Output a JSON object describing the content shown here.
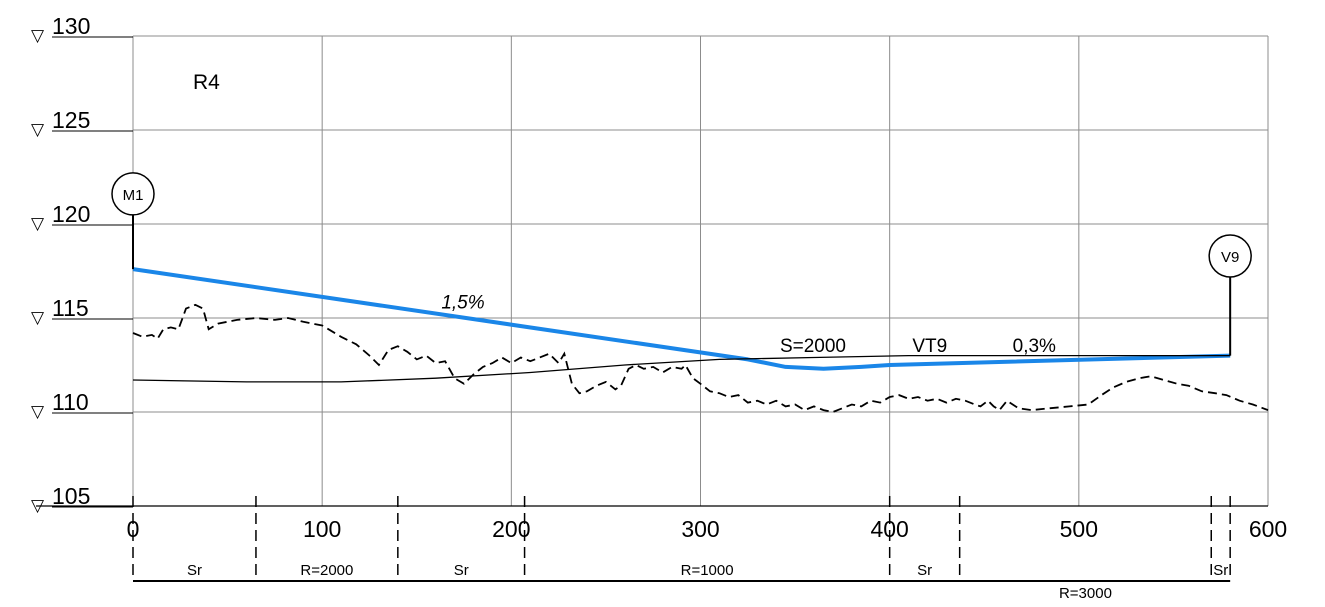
{
  "chart_data": {
    "type": "line",
    "title": "",
    "xlabel": "",
    "ylabel": "",
    "xlim": [
      0,
      600
    ],
    "ylim": [
      105,
      130
    ],
    "grid": true,
    "x_ticks": [
      {
        "value": 0,
        "label": "0"
      },
      {
        "value": 100,
        "label": "100"
      },
      {
        "value": 200,
        "label": "200"
      },
      {
        "value": 300,
        "label": "300"
      },
      {
        "value": 400,
        "label": "400"
      },
      {
        "value": 500,
        "label": "500"
      },
      {
        "value": 600,
        "label": "600"
      }
    ],
    "y_ticks": [
      {
        "value": 130,
        "label": "130"
      },
      {
        "value": 125,
        "label": "125"
      },
      {
        "value": 120,
        "label": "120"
      },
      {
        "value": 115,
        "label": "115"
      },
      {
        "value": 110,
        "label": "110"
      },
      {
        "value": 105,
        "label": "105"
      }
    ],
    "y_tick_marker": "▽",
    "route_label": "R4",
    "series": [
      {
        "role": "design-grade",
        "color": "#1a86e8",
        "points": [
          [
            0,
            117.6
          ],
          [
            325,
            112.8
          ],
          [
            345,
            112.4
          ],
          [
            365,
            112.3
          ],
          [
            385,
            112.4
          ],
          [
            400,
            112.5
          ],
          [
            580,
            113.0
          ]
        ]
      },
      {
        "role": "ground-profile",
        "style": "dashed",
        "color": "#000000",
        "points": [
          [
            0,
            114.2
          ],
          [
            5,
            114.0
          ],
          [
            10,
            114.1
          ],
          [
            13,
            113.9
          ],
          [
            16,
            114.4
          ],
          [
            20,
            114.5
          ],
          [
            24,
            114.4
          ],
          [
            28,
            115.5
          ],
          [
            33,
            115.7
          ],
          [
            37,
            115.5
          ],
          [
            40,
            114.4
          ],
          [
            45,
            114.7
          ],
          [
            55,
            114.9
          ],
          [
            65,
            115.0
          ],
          [
            75,
            114.9
          ],
          [
            82,
            115.0
          ],
          [
            90,
            114.8
          ],
          [
            100,
            114.6
          ],
          [
            110,
            114.0
          ],
          [
            118,
            113.6
          ],
          [
            125,
            113.0
          ],
          [
            130,
            112.5
          ],
          [
            135,
            113.3
          ],
          [
            140,
            113.5
          ],
          [
            145,
            113.2
          ],
          [
            150,
            112.8
          ],
          [
            155,
            113.0
          ],
          [
            160,
            112.6
          ],
          [
            165,
            112.7
          ],
          [
            170,
            111.8
          ],
          [
            175,
            111.5
          ],
          [
            180,
            112.0
          ],
          [
            185,
            112.4
          ],
          [
            190,
            112.6
          ],
          [
            195,
            112.9
          ],
          [
            200,
            112.6
          ],
          [
            205,
            112.9
          ],
          [
            210,
            112.7
          ],
          [
            215,
            112.9
          ],
          [
            220,
            113.1
          ],
          [
            225,
            112.6
          ],
          [
            228,
            113.1
          ],
          [
            232,
            111.5
          ],
          [
            236,
            111.0
          ],
          [
            240,
            111.1
          ],
          [
            245,
            111.4
          ],
          [
            250,
            111.6
          ],
          [
            255,
            111.2
          ],
          [
            258,
            111.4
          ],
          [
            262,
            112.3
          ],
          [
            266,
            112.5
          ],
          [
            270,
            112.3
          ],
          [
            275,
            112.4
          ],
          [
            280,
            112.1
          ],
          [
            285,
            112.4
          ],
          [
            290,
            112.3
          ],
          [
            292,
            112.5
          ],
          [
            296,
            111.8
          ],
          [
            300,
            111.5
          ],
          [
            305,
            111.1
          ],
          [
            310,
            111.0
          ],
          [
            315,
            110.8
          ],
          [
            320,
            110.9
          ],
          [
            325,
            110.5
          ],
          [
            330,
            110.6
          ],
          [
            335,
            110.4
          ],
          [
            340,
            110.6
          ],
          [
            345,
            110.3
          ],
          [
            350,
            110.4
          ],
          [
            355,
            110.1
          ],
          [
            360,
            110.3
          ],
          [
            365,
            110.1
          ],
          [
            370,
            110.0
          ],
          [
            375,
            110.2
          ],
          [
            380,
            110.4
          ],
          [
            385,
            110.3
          ],
          [
            390,
            110.6
          ],
          [
            395,
            110.5
          ],
          [
            400,
            110.8
          ],
          [
            405,
            110.9
          ],
          [
            410,
            110.7
          ],
          [
            415,
            110.8
          ],
          [
            420,
            110.6
          ],
          [
            425,
            110.7
          ],
          [
            430,
            110.5
          ],
          [
            435,
            110.7
          ],
          [
            440,
            110.6
          ],
          [
            445,
            110.4
          ],
          [
            448,
            110.3
          ],
          [
            452,
            110.6
          ],
          [
            455,
            110.3
          ],
          [
            458,
            110.1
          ],
          [
            462,
            110.6
          ],
          [
            468,
            110.2
          ],
          [
            475,
            110.1
          ],
          [
            485,
            110.2
          ],
          [
            495,
            110.3
          ],
          [
            505,
            110.4
          ],
          [
            512,
            110.9
          ],
          [
            518,
            111.3
          ],
          [
            525,
            111.6
          ],
          [
            532,
            111.8
          ],
          [
            538,
            111.9
          ],
          [
            545,
            111.7
          ],
          [
            552,
            111.5
          ],
          [
            558,
            111.4
          ],
          [
            565,
            111.1
          ],
          [
            572,
            111.0
          ],
          [
            578,
            110.9
          ],
          [
            585,
            110.6
          ],
          [
            592,
            110.4
          ],
          [
            600,
            110.1
          ]
        ]
      },
      {
        "role": "reference-curve",
        "color": "#000000",
        "points": [
          [
            0,
            111.7
          ],
          [
            60,
            111.6
          ],
          [
            110,
            111.6
          ],
          [
            160,
            111.8
          ],
          [
            210,
            112.1
          ],
          [
            260,
            112.5
          ],
          [
            310,
            112.8
          ],
          [
            360,
            112.9
          ],
          [
            410,
            113.0
          ],
          [
            460,
            113.0
          ],
          [
            510,
            113.0
          ],
          [
            580,
            113.0
          ]
        ]
      }
    ],
    "annotations": [
      {
        "text": "1,5%",
        "x": 163,
        "y": 115.5,
        "style": "italic"
      },
      {
        "text": "S=2000",
        "x": 342,
        "y": 113.2
      },
      {
        "text": "VT9",
        "x": 412,
        "y": 113.2
      },
      {
        "text": "0,3%",
        "x": 465,
        "y": 113.2
      }
    ],
    "stations": [
      {
        "label": "M1",
        "x": 0,
        "y_circle": 121.6,
        "y_line_bottom": 117.6
      },
      {
        "label": "V9",
        "x": 580,
        "y_circle": 118.3,
        "y_line_bottom": 113.0
      }
    ],
    "alignment_breaks": [
      0,
      65,
      140,
      207,
      400,
      437,
      570,
      580
    ],
    "alignment_segments": [
      {
        "label": "Sr",
        "from": 0,
        "to": 65
      },
      {
        "label": "R=2000",
        "from": 65,
        "to": 140
      },
      {
        "label": "Sr",
        "from": 140,
        "to": 207
      },
      {
        "label": "R=1000",
        "from": 207,
        "to": 400
      },
      {
        "label": "Sr",
        "from": 400,
        "to": 437
      },
      {
        "label": "R=3000",
        "from": 437,
        "to": 570,
        "below": true
      },
      {
        "label": "Sr",
        "from": 570,
        "to": 580
      }
    ]
  }
}
